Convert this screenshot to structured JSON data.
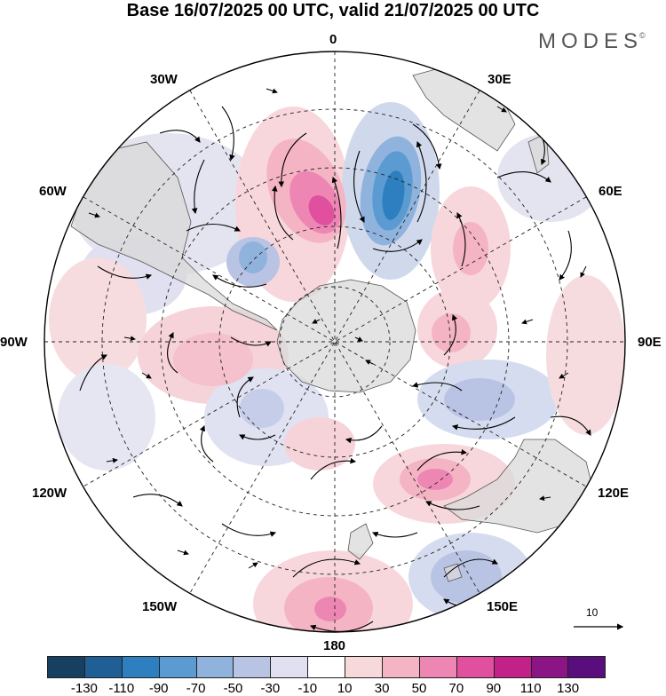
{
  "title": "Base 16/07/2025 00 UTC, valid 21/07/2025 00 UTC",
  "brand": "MODES",
  "brand_mark": "©",
  "longitude_labels": {
    "top": "0",
    "bottom": "180",
    "left": "90W",
    "right": "90E",
    "w30": "30W",
    "w60": "60W",
    "w120": "120W",
    "w150": "150W",
    "e30": "30E",
    "e60": "60E",
    "e120": "120E",
    "e150": "150E"
  },
  "reference_vector": "10",
  "colorbar": {
    "colors": [
      "#173f5f",
      "#1f5f95",
      "#2e7fbf",
      "#5b9bd1",
      "#8fb3dd",
      "#b9c4e4",
      "#e0e0f0",
      "#ffffff",
      "#f7d9dc",
      "#f4b4c3",
      "#ee86b4",
      "#e0509f",
      "#c4208a",
      "#8b1585",
      "#5a0e7e"
    ],
    "ticks": [
      "-130",
      "-110",
      "-90",
      "-70",
      "-50",
      "-30",
      "-10",
      "10",
      "30",
      "50",
      "70",
      "90",
      "110",
      "130"
    ]
  }
}
